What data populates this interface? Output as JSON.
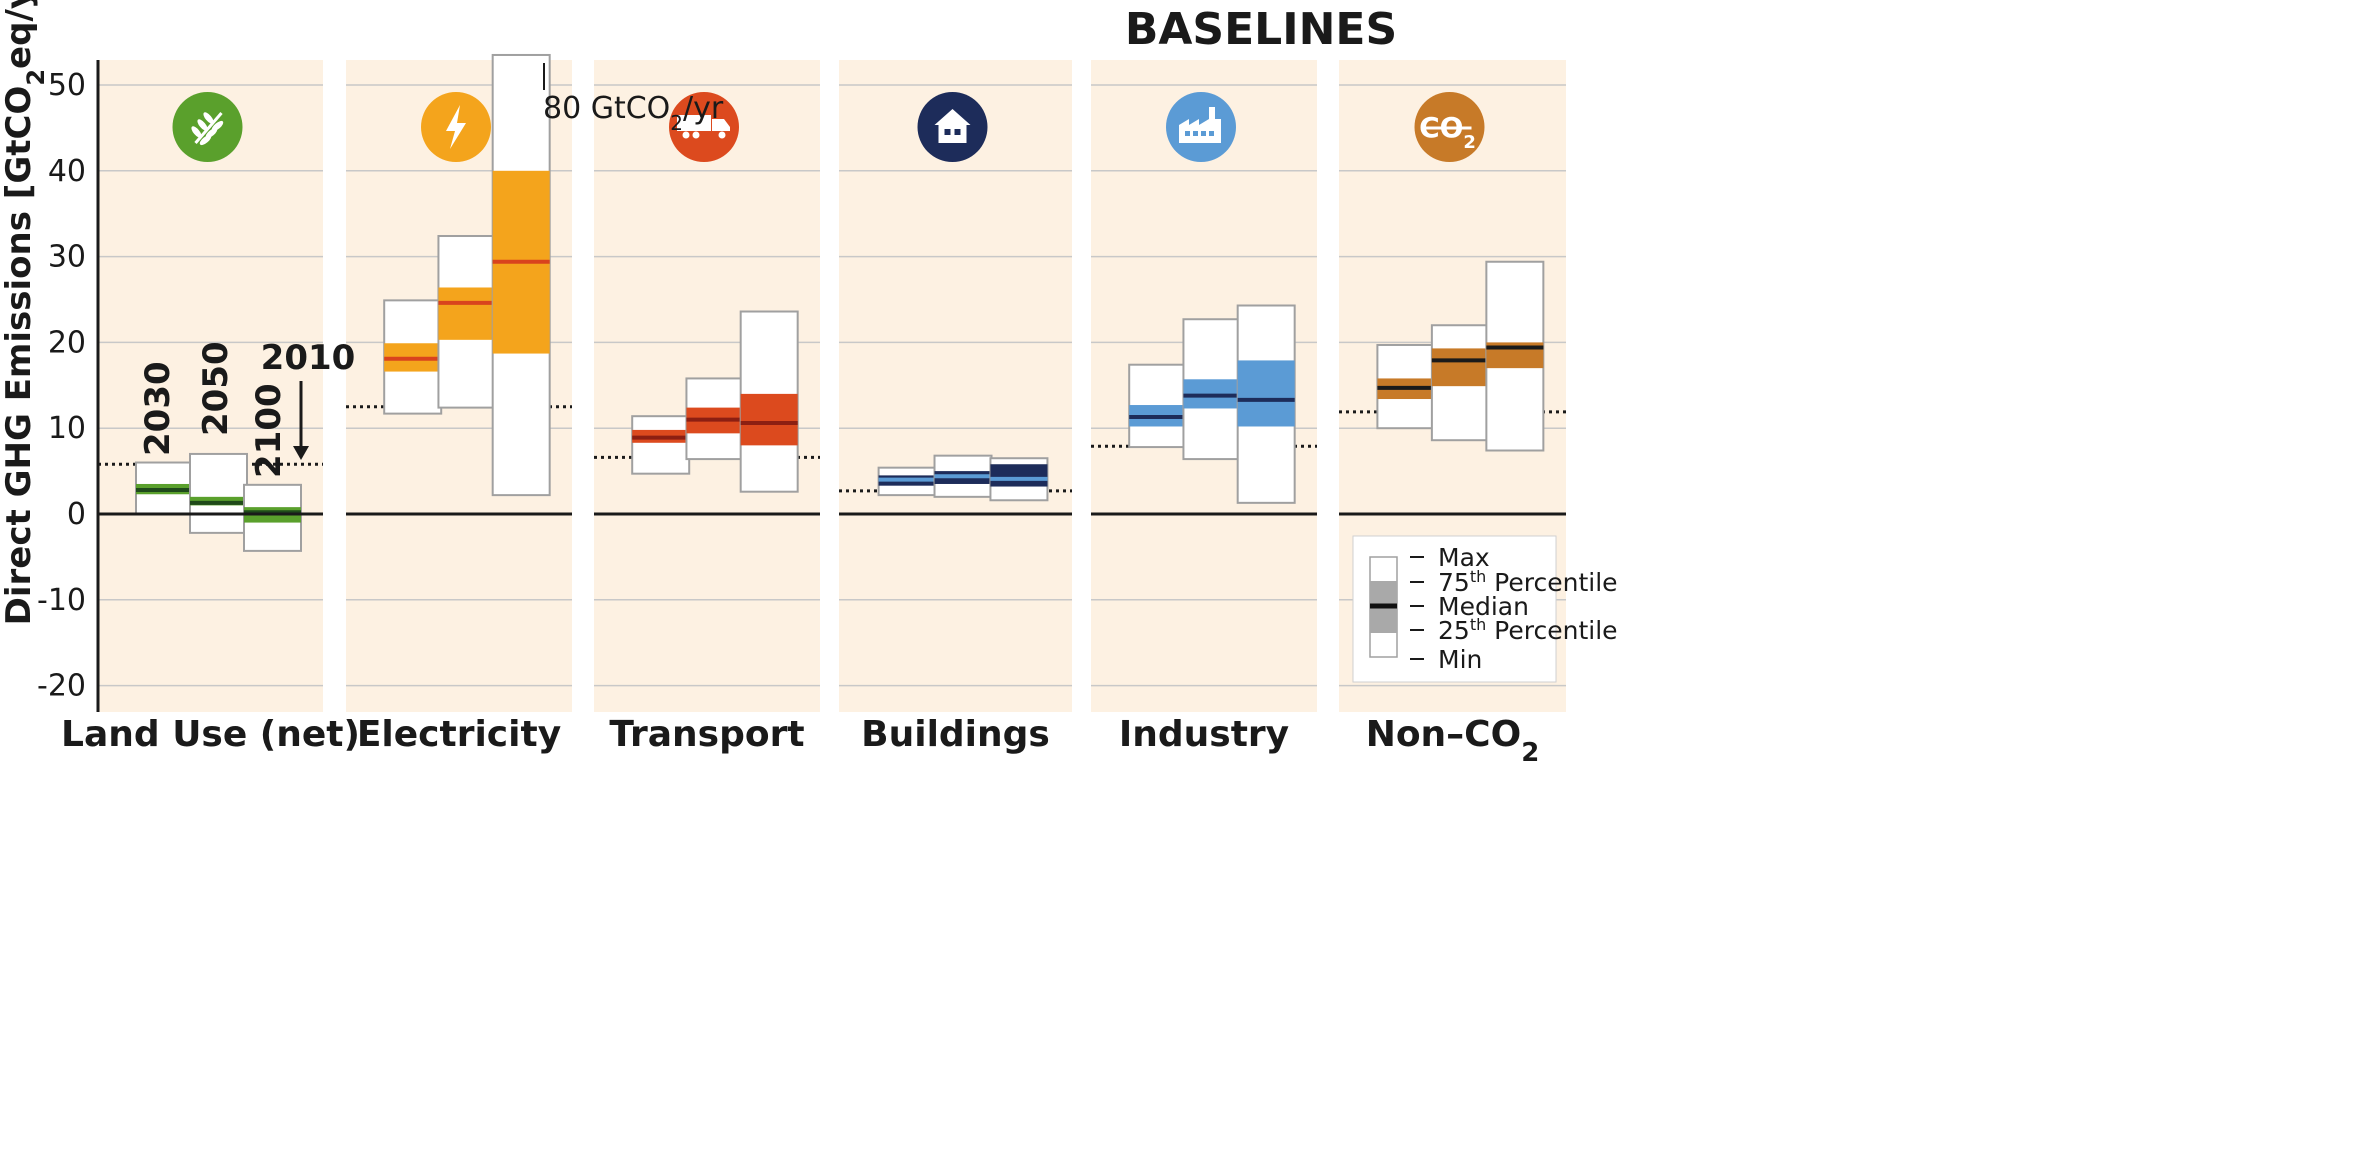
{
  "chart_data": {
    "type": "boxplot",
    "title": "BASELINES",
    "ylabel_main": "Direct GHG Emissions [GtCO",
    "ylabel_sub": "2",
    "ylabel_tail": "eq/yr]",
    "ylim": [
      -22,
      53
    ],
    "yticks": [
      50,
      40,
      30,
      20,
      10,
      0,
      -10,
      -20
    ],
    "ytick_labels": [
      "50",
      "40",
      "30",
      "20",
      "10",
      "0",
      "-10",
      "-20"
    ],
    "grid": true,
    "years": [
      "2030",
      "2050",
      "2100"
    ],
    "year_2010_label": "2010",
    "overflow_annotation": {
      "prefix": "80 GtCO",
      "sub": "2",
      "suffix": "/yr",
      "value": 80
    },
    "sectors": [
      {
        "label": "Land Use (net)",
        "label_sub": "",
        "icon": "wheat-icon",
        "color": "#5aa02c",
        "median_color": "#1f4a1a",
        "level_2010": 5.8,
        "boxes": [
          {
            "year": "2030",
            "min": 0,
            "q1": 2.3,
            "median": 2.8,
            "q3": 3.5,
            "max": 6
          },
          {
            "year": "2050",
            "min": -2.2,
            "q1": 1.0,
            "median": 1.3,
            "q3": 2.0,
            "max": 7
          },
          {
            "year": "2100",
            "min": -4.3,
            "q1": -1.0,
            "median": 0.2,
            "q3": 0.8,
            "max": 3.4
          }
        ]
      },
      {
        "label": "Electricity",
        "label_sub": "",
        "icon": "lightning-icon",
        "color": "#f4a41c",
        "median_color": "#d9431d",
        "level_2010": 12.5,
        "boxes": [
          {
            "year": "2030",
            "min": 11.7,
            "q1": 16.6,
            "median": 18.1,
            "q3": 19.9,
            "max": 24.9
          },
          {
            "year": "2050",
            "min": 12.4,
            "q1": 20.3,
            "median": 24.6,
            "q3": 26.4,
            "max": 32.4
          },
          {
            "year": "2100",
            "min": 2.2,
            "q1": 18.7,
            "median": 29.4,
            "q3": 40.0,
            "max": 80
          }
        ]
      },
      {
        "label": "Transport",
        "label_sub": "",
        "icon": "truck-icon",
        "color": "#dc4a1e",
        "median_color": "#8c1f12",
        "level_2010": 6.6,
        "boxes": [
          {
            "year": "2030",
            "min": 4.7,
            "q1": 8.3,
            "median": 8.9,
            "q3": 9.8,
            "max": 11.4
          },
          {
            "year": "2050",
            "min": 6.4,
            "q1": 9.4,
            "median": 11.0,
            "q3": 12.4,
            "max": 15.8
          },
          {
            "year": "2100",
            "min": 2.6,
            "q1": 8.0,
            "median": 10.6,
            "q3": 14.0,
            "max": 23.6
          }
        ]
      },
      {
        "label": "Buildings",
        "label_sub": "",
        "icon": "house-icon",
        "color": "#1d2c5a",
        "median_color": "#5b9bd5",
        "level_2010": 2.7,
        "boxes": [
          {
            "year": "2030",
            "min": 2.2,
            "q1": 3.3,
            "median": 4.0,
            "q3": 4.5,
            "max": 5.4
          },
          {
            "year": "2050",
            "min": 2.0,
            "q1": 3.5,
            "median": 4.4,
            "q3": 5.0,
            "max": 6.8
          },
          {
            "year": "2100",
            "min": 1.6,
            "q1": 3.2,
            "median": 4.1,
            "q3": 5.8,
            "max": 6.5
          }
        ]
      },
      {
        "label": "Industry",
        "label_sub": "",
        "icon": "factory-icon",
        "color": "#5b9bd5",
        "median_color": "#1d2c5a",
        "level_2010": 7.9,
        "boxes": [
          {
            "year": "2030",
            "min": 7.8,
            "q1": 10.2,
            "median": 11.3,
            "q3": 12.7,
            "max": 17.4
          },
          {
            "year": "2050",
            "min": 6.4,
            "q1": 12.3,
            "median": 13.8,
            "q3": 15.7,
            "max": 22.7
          },
          {
            "year": "2100",
            "min": 1.3,
            "q1": 10.2,
            "median": 13.3,
            "q3": 17.9,
            "max": 24.3
          }
        ]
      },
      {
        "label": "Non–CO",
        "label_sub": "2",
        "icon": "no-co2-icon",
        "color": "#c77a28",
        "median_color": "#1a1a1a",
        "level_2010": 11.9,
        "boxes": [
          {
            "year": "2030",
            "min": 10.0,
            "q1": 13.4,
            "median": 14.7,
            "q3": 15.8,
            "max": 19.7
          },
          {
            "year": "2050",
            "min": 8.6,
            "q1": 14.9,
            "median": 17.9,
            "q3": 19.3,
            "max": 22.0
          },
          {
            "year": "2100",
            "min": 7.4,
            "q1": 17.0,
            "median": 19.4,
            "q3": 20.0,
            "max": 29.4
          }
        ]
      }
    ],
    "icon_text": {
      "co2_main": "CO",
      "co2_sub": "2"
    },
    "legend": {
      "placement": "bottom-right",
      "items": [
        {
          "main": "Max",
          "sup": ""
        },
        {
          "main": "75",
          "sup": "th",
          "tail": " Percentile"
        },
        {
          "main": "Median",
          "sup": ""
        },
        {
          "main": "25",
          "sup": "th",
          "tail": " Percentile"
        },
        {
          "main": "Min",
          "sup": ""
        }
      ]
    },
    "colors": {
      "panel_bg": "#fdf1e2",
      "grid": "#c8c8c8",
      "axis": "#1a1a1a",
      "box_border": "#a0a0a0",
      "legend_box": "#a9a9a9"
    }
  }
}
